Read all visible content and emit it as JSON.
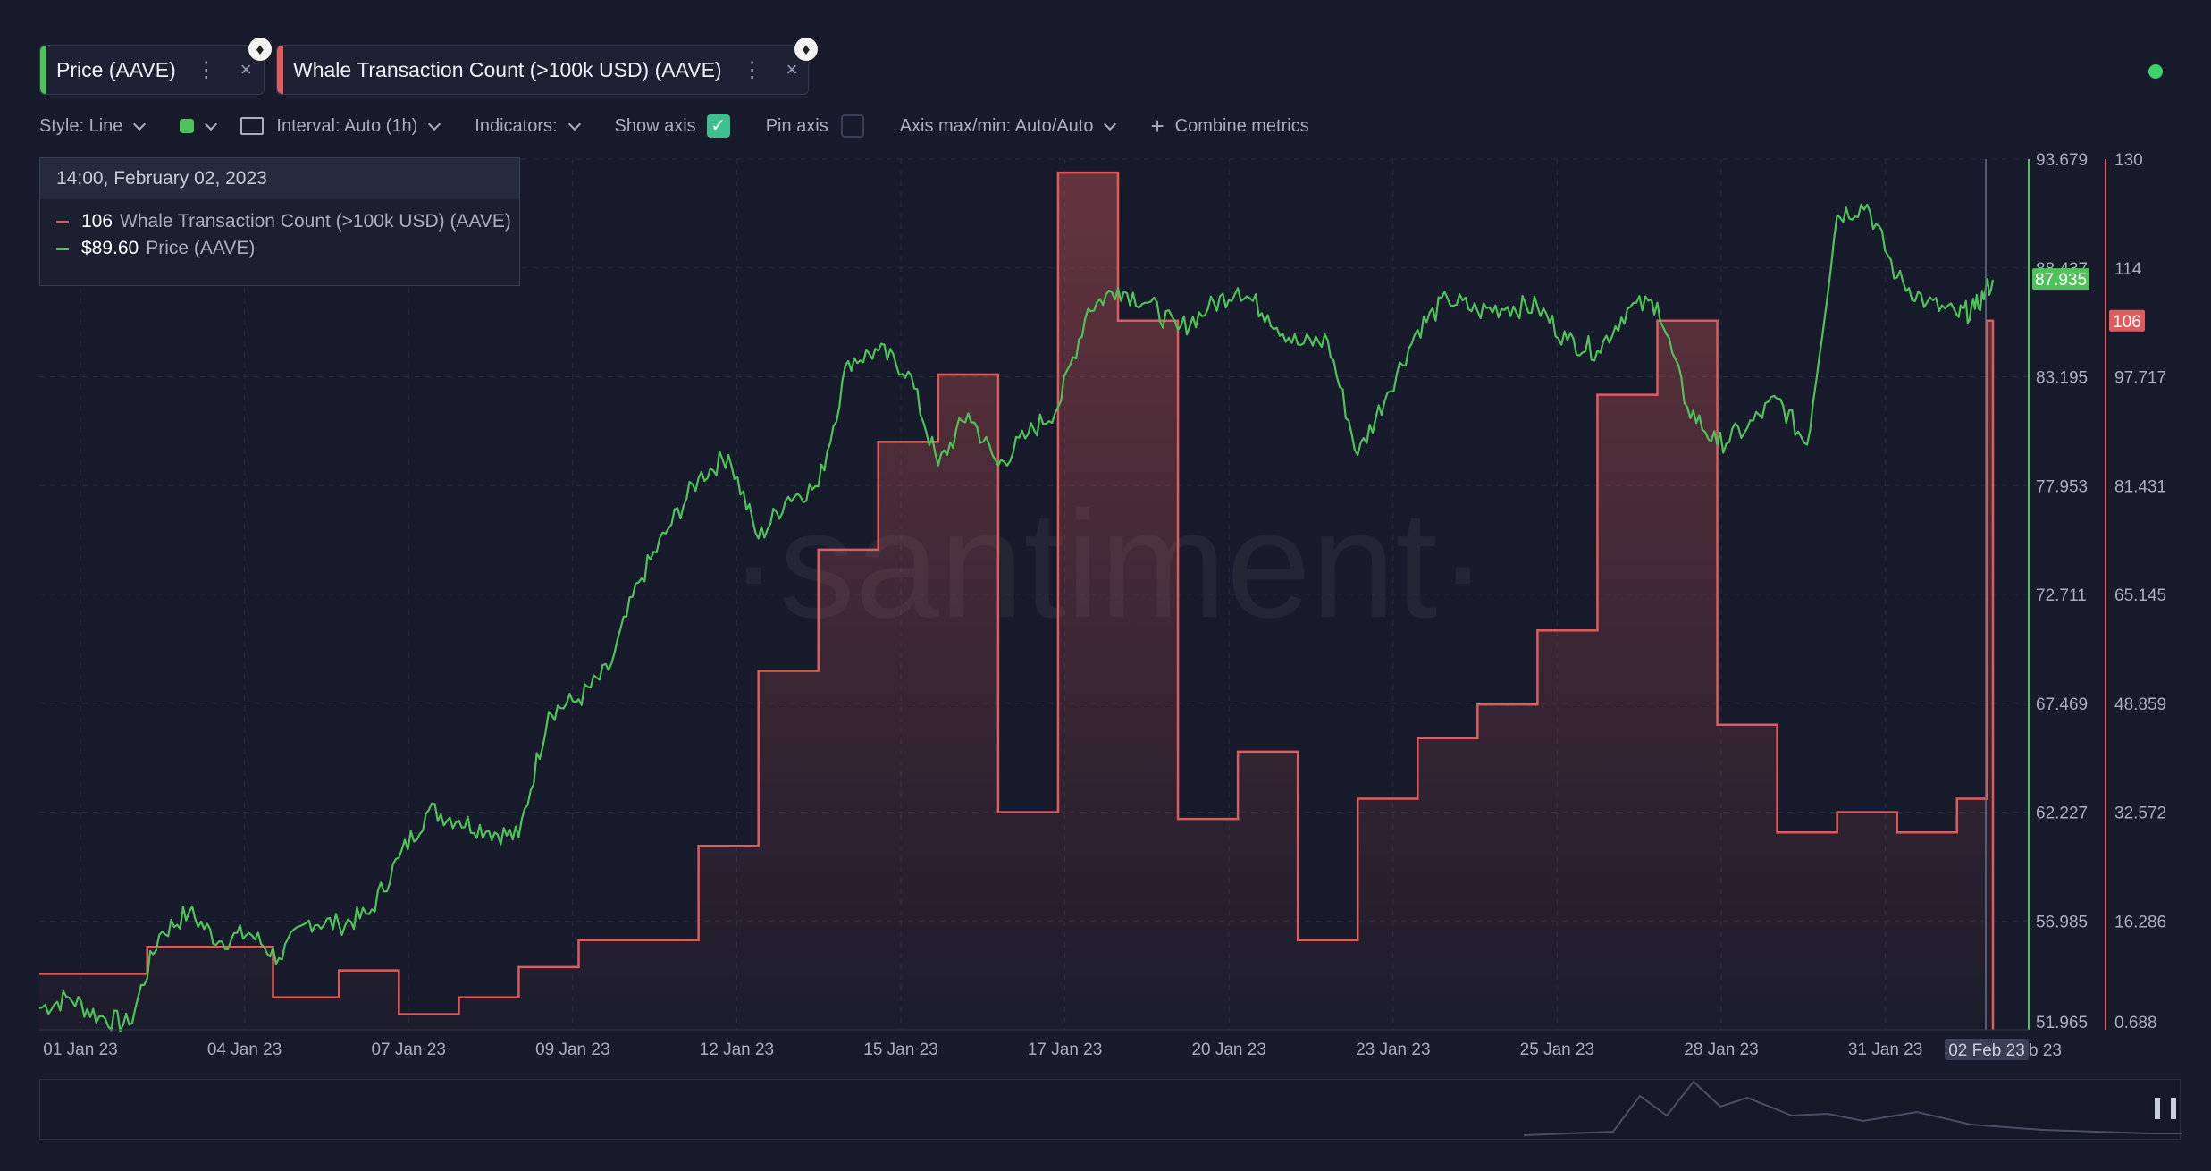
{
  "tabs": [
    {
      "label": "Price (AAVE)",
      "color": "#4fc25a",
      "menu_glyph": "⋮",
      "close_glyph": "×"
    },
    {
      "label": "Whale Transaction Count (>100k USD) (AAVE)",
      "color": "#e05c5c",
      "menu_glyph": "⋮",
      "close_glyph": "×"
    }
  ],
  "toolbar": {
    "style": "Style: Line",
    "interval": "Interval: Auto (1h)",
    "indicators": "Indicators:",
    "show_axis": "Show axis",
    "pin_axis": "Pin axis",
    "axis_maxmin": "Axis max/min: Auto/Auto",
    "combine": "Combine metrics"
  },
  "tooltip": {
    "datetime": "14:00, February 02, 2023",
    "rows": [
      {
        "value": "106",
        "name": "Whale Transaction Count (>100k USD) (AAVE)",
        "color": "#e05c5c"
      },
      {
        "value": "$89.60",
        "name": "Price (AAVE)",
        "color": "#4fc25a"
      }
    ]
  },
  "watermark": "·santiment·",
  "colors": {
    "price": "#4fc25a",
    "whale": "#e05c5c",
    "background": "#181b2b"
  },
  "chart_data": {
    "type": "line",
    "x_ticks": [
      "01 Jan 23",
      "04 Jan 23",
      "07 Jan 23",
      "09 Jan 23",
      "12 Jan 23",
      "15 Jan 23",
      "17 Jan 23",
      "20 Jan 23",
      "23 Jan 23",
      "25 Jan 23",
      "28 Jan 23",
      "31 Jan 23"
    ],
    "x_cursor_label": "02 Feb 23",
    "x_cursor_suffix": "b 23",
    "axes": {
      "price": {
        "ticks": [
          "93.679",
          "88.437",
          "83.195",
          "77.953",
          "72.711",
          "67.469",
          "62.227",
          "56.985",
          "51.965"
        ],
        "range": [
          51.965,
          93.679
        ],
        "current_label": "87.935",
        "current": 87.935
      },
      "whale": {
        "ticks": [
          "130",
          "114",
          "97.717",
          "81.431",
          "65.145",
          "48.859",
          "32.572",
          "16.286",
          "0.688"
        ],
        "range": [
          0.688,
          130
        ],
        "current_label": "106",
        "current": 106
      }
    },
    "series": [
      {
        "name": "Whale Transaction Count (>100k USD) (AAVE)",
        "kind": "step",
        "x_days": [
          0,
          1.8,
          2.8,
          3.9,
          5,
          6,
          7,
          8,
          9,
          10,
          11,
          12,
          13,
          14,
          15,
          16,
          17,
          18,
          19,
          20,
          21,
          22,
          23,
          24,
          25,
          26,
          27,
          28,
          29,
          30,
          31,
          32,
          32.5,
          32.6
        ],
        "y": [
          9,
          13,
          13,
          5.5,
          9.5,
          3,
          5.5,
          10,
          14,
          14,
          28,
          54,
          72,
          88,
          98,
          33,
          128,
          106,
          32,
          42,
          14,
          35,
          44,
          49,
          60,
          95,
          106,
          46,
          30,
          33,
          30,
          35,
          106,
          0.7
        ]
      },
      {
        "name": "Price (AAVE)",
        "kind": "line",
        "x_days": [
          0,
          0.5,
          1,
          1.5,
          2,
          2.5,
          3,
          3.5,
          4,
          4.5,
          5,
          5.5,
          6,
          6.5,
          7,
          7.5,
          8,
          8.5,
          9,
          9.5,
          10,
          10.5,
          11,
          11.5,
          12,
          12.5,
          13,
          13.5,
          14,
          14.5,
          15,
          15.5,
          16,
          16.5,
          17,
          17.5,
          18,
          18.5,
          19,
          19.5,
          20,
          20.5,
          21,
          21.5,
          22,
          22.5,
          23,
          23.5,
          24,
          24.5,
          25,
          25.5,
          26,
          26.5,
          27,
          27.5,
          28,
          28.5,
          29,
          29.5,
          30,
          30.5,
          31,
          31.5,
          32,
          32.3,
          32.6
        ],
        "y": [
          53,
          53.5,
          52.6,
          52.2,
          56.5,
          57.6,
          56.2,
          56.6,
          55.4,
          57.2,
          57,
          57.5,
          60.2,
          62.5,
          62,
          61.5,
          61.2,
          67.2,
          67.8,
          69.2,
          73.4,
          76,
          78.4,
          79.5,
          75.5,
          77.5,
          78,
          84,
          84.5,
          83.5,
          79,
          81.5,
          79,
          80.5,
          81.8,
          86.5,
          87.5,
          86.8,
          85.5,
          86.5,
          87.5,
          86.2,
          84.8,
          85,
          79.5,
          82.5,
          85.5,
          87,
          86.4,
          86.6,
          86.6,
          85,
          84.5,
          86.5,
          86.8,
          81.8,
          80,
          80.8,
          82.2,
          80,
          91,
          91.5,
          88,
          86.8,
          86.2,
          86.5,
          87.9
        ]
      }
    ]
  }
}
